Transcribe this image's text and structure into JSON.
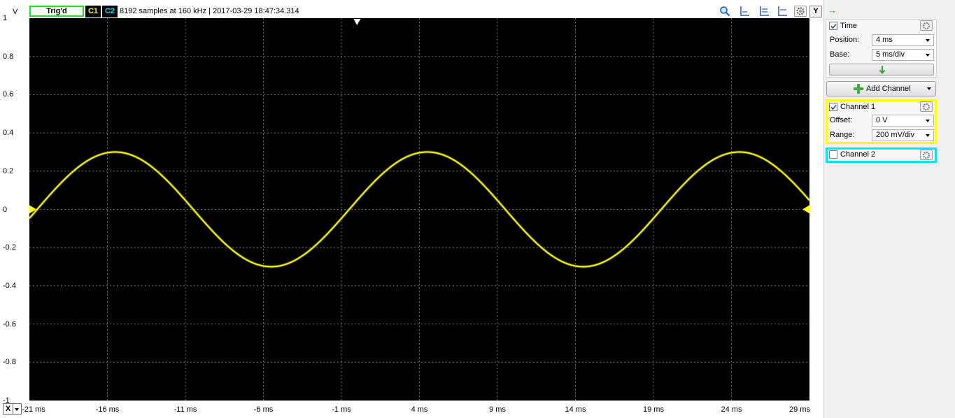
{
  "top_bar": {
    "y_unit": "V",
    "trigger_status": "Trig'd",
    "channel1_badge": "C1",
    "channel2_badge": "C2",
    "acquisition_info": "8192 samples at 160 kHz | 2017-03-29 18:47:34.314",
    "y_button": "Y",
    "icons": [
      "zoom-icon",
      "cursor-vertical-icon",
      "cursor-horizontal-icon",
      "measure-icon",
      "gear-icon"
    ]
  },
  "plot": {
    "y_ticks": [
      "1",
      "0.8",
      "0.6",
      "0.4",
      "0.2",
      "0",
      "-0.2",
      "-0.4",
      "-0.6",
      "-0.8",
      "-1"
    ],
    "x_ticks": [
      "-21 ms",
      "-16 ms",
      "-11 ms",
      "-6 ms",
      "-1 ms",
      "4 ms",
      "9 ms",
      "14 ms",
      "19 ms",
      "24 ms",
      "29 ms"
    ],
    "x_axis_button": "X",
    "trace_color": "#ffff00",
    "grid_color": "#6e6e6e"
  },
  "chart_data": {
    "type": "line",
    "xlim": [
      -21,
      29
    ],
    "ylim": [
      -1,
      1
    ],
    "x_unit": "ms",
    "y_unit": "V",
    "grid": true,
    "series": [
      {
        "color": "#ffff00",
        "amplitude": 0.3,
        "period_ms": 20,
        "zero_crossing_rising_ms": -20.5
      }
    ]
  },
  "panel": {
    "expand_arrow": "→",
    "time": {
      "label": "Time",
      "checked": true,
      "position_label": "Position:",
      "position_value": "4 ms",
      "base_label": "Base:",
      "base_value": "5 ms/div"
    },
    "add_channel": "Add Channel",
    "channel1": {
      "label": "Channel 1",
      "checked": true,
      "offset_label": "Offset:",
      "offset_value": "0 V",
      "range_label": "Range:",
      "range_value": "200 mV/div",
      "color": "#ffff00"
    },
    "channel2": {
      "label": "Channel 2",
      "checked": false,
      "color": "#00e5ff"
    }
  }
}
